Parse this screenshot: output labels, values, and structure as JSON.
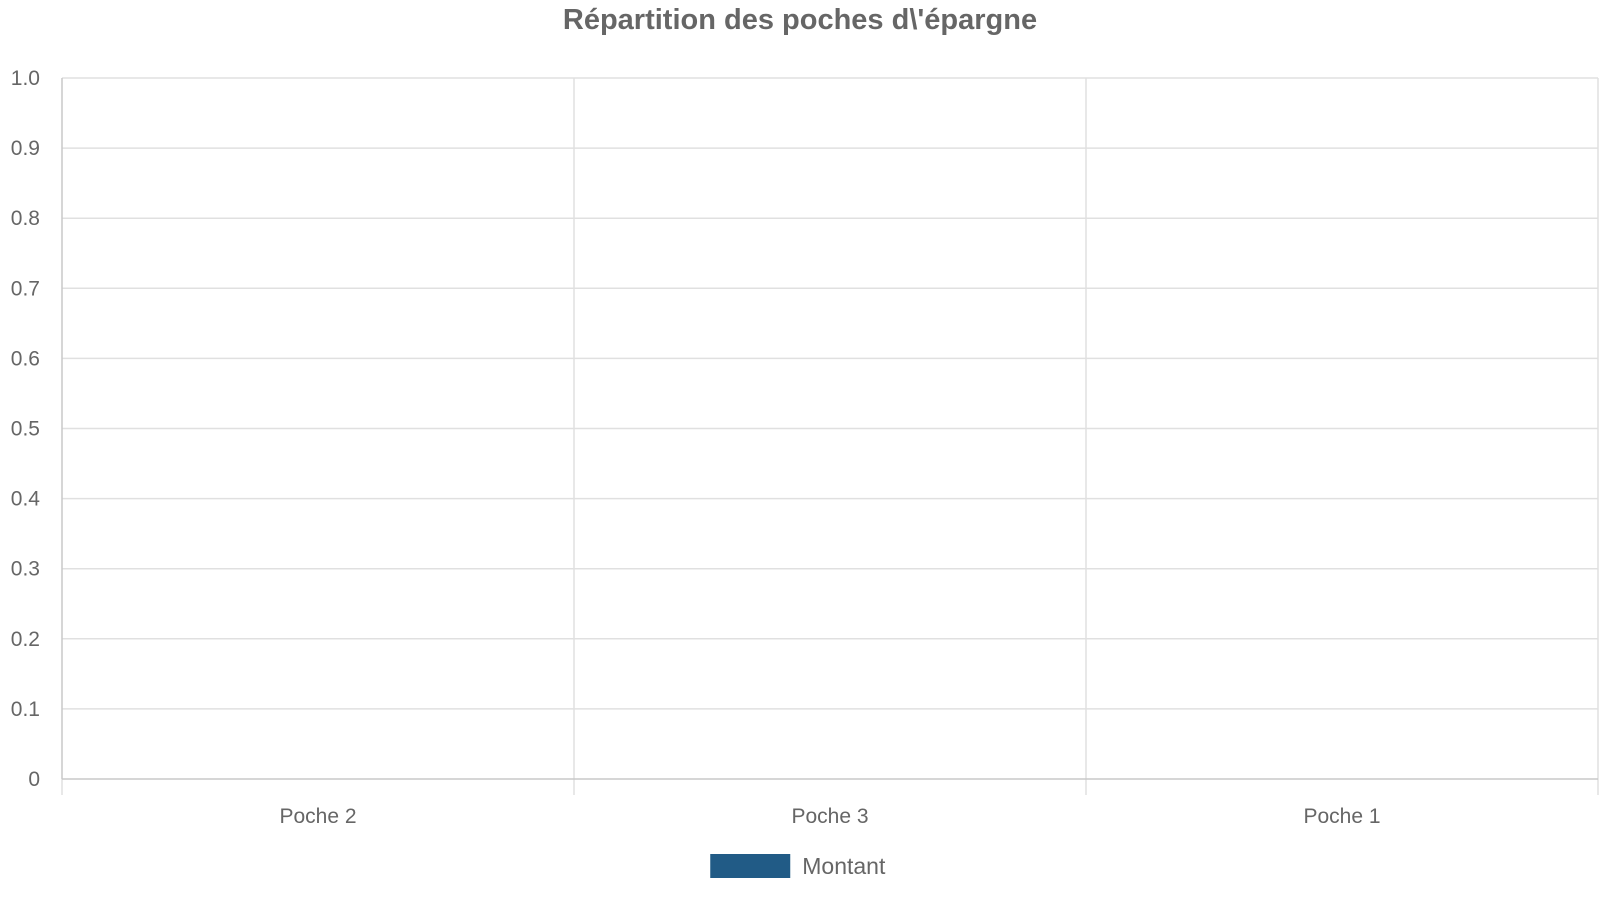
{
  "chart_data": {
    "type": "bar",
    "title": "Répartition des poches d\\'épargne",
    "xlabel": "",
    "ylabel": "",
    "categories": [
      "Poche 2",
      "Poche 3",
      "Poche 1"
    ],
    "series": [
      {
        "name": "Montant",
        "values": [
          0,
          0,
          0
        ],
        "color": "#215b86"
      }
    ],
    "ylim": [
      0,
      1.0
    ],
    "yticks": [
      "0",
      "0.1",
      "0.2",
      "0.3",
      "0.4",
      "0.5",
      "0.6",
      "0.7",
      "0.8",
      "0.9",
      "1.0"
    ],
    "grid": true,
    "legend_position": "bottom-center"
  },
  "colors": {
    "text": "#666666",
    "grid": "#e0e0e0",
    "axis": "#c8c8c8"
  }
}
